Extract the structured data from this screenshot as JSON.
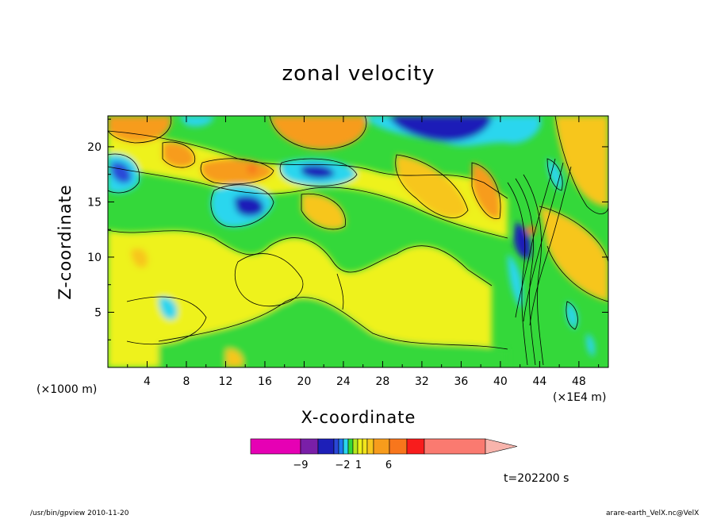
{
  "chart_data": {
    "type": "heatmap",
    "title": "zonal velocity",
    "xlabel": "X-coordinate",
    "ylabel": "Z-coordinate",
    "x_unit_left": "(×1000 m)",
    "x_unit_right": "(×1E4 m)",
    "x_ticks": [
      "4",
      "8",
      "12",
      "16",
      "20",
      "24",
      "28",
      "32",
      "36",
      "40",
      "44",
      "48"
    ],
    "x_tick_values": [
      4,
      8,
      12,
      16,
      20,
      24,
      28,
      32,
      36,
      40,
      44,
      48
    ],
    "xlim": [
      0,
      51
    ],
    "y_ticks": [
      "5",
      "10",
      "15",
      "20"
    ],
    "y_tick_values": [
      5,
      10,
      15,
      20
    ],
    "ylim": [
      0,
      22.8
    ],
    "colorbar": {
      "labels": [
        {
          "text": "−9",
          "value": -9
        },
        {
          "text": "−2",
          "value": -2
        },
        {
          "text": "1",
          "value": 1
        },
        {
          "text": "6",
          "value": 6
        }
      ],
      "colors": [
        "#e600b4",
        "#7a1fa8",
        "#1d1fb8",
        "#2a48d8",
        "#1d7af0",
        "#2ad6ee",
        "#34d83a",
        "#b6e81e",
        "#eef21a",
        "#f3e41c",
        "#f7c61e",
        "#f79c1c",
        "#f8761c",
        "#f81c1c",
        "#fa7a70"
      ],
      "extend_color": "#f8b4ac"
    },
    "time": "t=202200 s",
    "footer_left": "/usr/bin/gpview  2010-11-20",
    "footer_right": "arare-earth_VelX.nc@VelX",
    "features": [
      {
        "x": 15,
        "z": 14.6,
        "value": -6
      },
      {
        "x": 21.5,
        "z": 17.7,
        "value": -4
      },
      {
        "x": 34,
        "z": 21.8,
        "value": -7
      },
      {
        "x": 1.5,
        "z": 17.6,
        "value": -4
      },
      {
        "x": 43,
        "z": 11,
        "value": -8
      },
      {
        "x": 14,
        "z": 18,
        "value": 5
      },
      {
        "x": 8,
        "z": 19.5,
        "value": 4
      },
      {
        "x": 22,
        "z": 21.5,
        "value": 4
      },
      {
        "x": 3,
        "z": 21.8,
        "value": 4
      },
      {
        "x": 29,
        "z": 17,
        "value": 3
      },
      {
        "x": 35,
        "z": 16,
        "value": 3
      },
      {
        "x": 24,
        "z": 14.5,
        "value": 2
      },
      {
        "x": 4,
        "z": 10,
        "value": 2
      },
      {
        "x": 13,
        "z": 1,
        "value": 2
      }
    ]
  }
}
